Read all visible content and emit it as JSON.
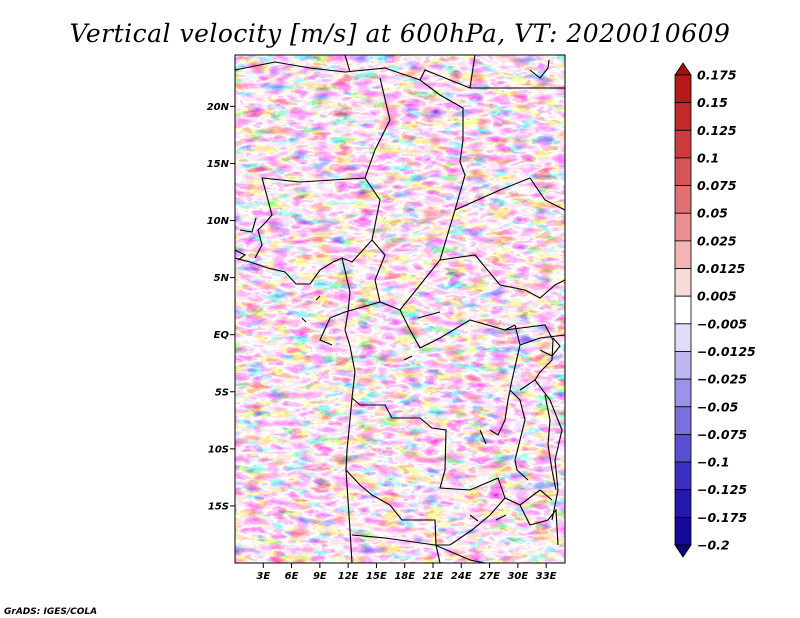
{
  "chart_data": {
    "type": "heatmap",
    "title": "Vertical velocity [m/s] at 600hPa, VT: 2020010609",
    "variable": "Vertical velocity",
    "units": "m/s",
    "level": "600hPa",
    "valid_time": "2020010609",
    "x_ticks": [
      {
        "label": "3E",
        "lon": 3
      },
      {
        "label": "6E",
        "lon": 6
      },
      {
        "label": "9E",
        "lon": 9
      },
      {
        "label": "12E",
        "lon": 12
      },
      {
        "label": "15E",
        "lon": 15
      },
      {
        "label": "18E",
        "lon": 18
      },
      {
        "label": "21E",
        "lon": 21
      },
      {
        "label": "24E",
        "lon": 24
      },
      {
        "label": "27E",
        "lon": 27
      },
      {
        "label": "30E",
        "lon": 30
      },
      {
        "label": "33E",
        "lon": 33
      }
    ],
    "y_ticks": [
      {
        "label": "20N",
        "lat": 20
      },
      {
        "label": "15N",
        "lat": 15
      },
      {
        "label": "10N",
        "lat": 10
      },
      {
        "label": "5N",
        "lat": 5
      },
      {
        "label": "EQ",
        "lat": 0
      },
      {
        "label": "5S",
        "lat": -5
      },
      {
        "label": "10S",
        "lat": -10
      },
      {
        "label": "15S",
        "lat": -15
      }
    ],
    "lon_range": [
      0,
      35
    ],
    "lat_range": [
      -20,
      24.5
    ],
    "colorbar": {
      "levels": [
        "0.175",
        "0.15",
        "0.125",
        "0.1",
        "0.075",
        "0.05",
        "0.025",
        "0.0125",
        "0.005",
        "-0.005",
        "-0.0125",
        "-0.025",
        "-0.05",
        "-0.075",
        "-0.1",
        "-0.125",
        "-0.175",
        "-0.2"
      ],
      "colors": [
        "#9e0f12",
        "#b5191c",
        "#c3282b",
        "#cd3b3e",
        "#d65556",
        "#e07173",
        "#e98f90",
        "#f2b4b4",
        "#f9dada",
        "#ffffff",
        "#dedcf6",
        "#bcb7ef",
        "#9b93e7",
        "#7a70dd",
        "#5a4ed2",
        "#3c30c3",
        "#2718ad",
        "#17099a",
        "#0d0580"
      ]
    }
  },
  "credit": "GrADS: IGES/COLA"
}
